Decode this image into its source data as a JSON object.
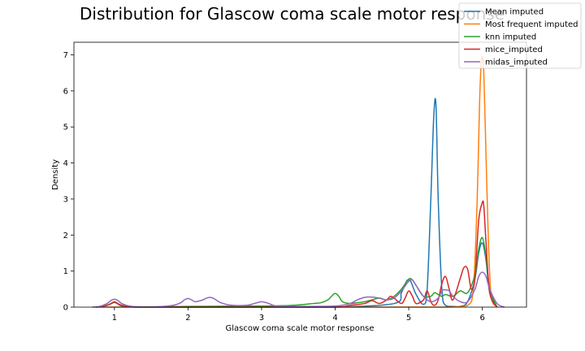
{
  "chart_data": {
    "type": "line",
    "title": "Distribution for Glascow coma scale motor response",
    "xlabel": "Glascow coma scale motor response",
    "ylabel": "Density",
    "xlim": [
      0.45,
      6.6
    ],
    "ylim": [
      0,
      7.35
    ],
    "xticks": [
      1,
      2,
      3,
      4,
      5,
      6
    ],
    "yticks": [
      0,
      1,
      2,
      3,
      4,
      5,
      6,
      7
    ],
    "grid": false,
    "legend_position": "top-right",
    "series": [
      {
        "name": "Mean imputed",
        "color": "#1f77b4",
        "x": [
          0.75,
          0.9,
          0.96,
          1.0,
          1.04,
          1.1,
          1.3,
          2.0,
          3.0,
          4.0,
          4.8,
          4.9,
          4.97,
          5.0,
          5.03,
          5.1,
          5.2,
          5.25,
          5.3,
          5.34,
          5.37,
          5.4,
          5.45,
          5.5,
          5.6,
          5.7,
          5.8,
          5.9,
          5.95,
          6.0,
          6.05,
          6.1,
          6.2
        ],
        "y": [
          0.0,
          0.05,
          0.1,
          0.13,
          0.1,
          0.03,
          0.0,
          0.0,
          0.0,
          0.0,
          0.1,
          0.4,
          0.72,
          0.75,
          0.7,
          0.35,
          0.08,
          0.5,
          3.0,
          5.3,
          5.6,
          3.0,
          0.5,
          0.05,
          0.02,
          0.02,
          0.15,
          0.8,
          1.5,
          1.78,
          1.3,
          0.4,
          0.0
        ]
      },
      {
        "name": "Most frequent imputed",
        "color": "#ff7f0e",
        "x": [
          0.75,
          1.0,
          1.3,
          2.0,
          3.0,
          4.0,
          5.0,
          5.5,
          5.8,
          5.88,
          5.93,
          5.96,
          5.98,
          6.0,
          6.02,
          6.04,
          6.08,
          6.12,
          6.2
        ],
        "y": [
          0.0,
          0.0,
          0.0,
          0.0,
          0.0,
          0.0,
          0.0,
          0.0,
          0.05,
          0.6,
          3.0,
          5.5,
          6.6,
          6.95,
          6.5,
          5.0,
          2.0,
          0.3,
          0.0
        ]
      },
      {
        "name": "knn imputed",
        "color": "#2ca02c",
        "x": [
          0.75,
          0.9,
          0.97,
          1.0,
          1.03,
          1.1,
          1.3,
          2.0,
          3.0,
          3.3,
          3.5,
          3.7,
          3.8,
          3.9,
          3.95,
          4.0,
          4.05,
          4.1,
          4.2,
          4.3,
          4.4,
          4.5,
          4.6,
          4.7,
          4.8,
          4.9,
          5.0,
          5.05,
          5.1,
          5.2,
          5.3,
          5.35,
          5.4,
          5.45,
          5.5,
          5.6,
          5.7,
          5.8,
          5.9,
          5.95,
          6.0,
          6.05,
          6.1,
          6.2
        ],
        "y": [
          0.0,
          0.05,
          0.12,
          0.13,
          0.12,
          0.05,
          0.01,
          0.02,
          0.03,
          0.04,
          0.06,
          0.1,
          0.12,
          0.2,
          0.3,
          0.38,
          0.3,
          0.15,
          0.1,
          0.12,
          0.15,
          0.2,
          0.25,
          0.2,
          0.3,
          0.5,
          0.78,
          0.75,
          0.6,
          0.3,
          0.3,
          0.4,
          0.35,
          0.3,
          0.35,
          0.3,
          0.45,
          0.4,
          0.9,
          1.6,
          1.93,
          1.4,
          0.5,
          0.0
        ]
      },
      {
        "name": "mice_imputed",
        "color": "#d62728",
        "x": [
          0.75,
          0.9,
          0.97,
          1.0,
          1.03,
          1.1,
          1.3,
          2.0,
          3.0,
          4.0,
          4.2,
          4.4,
          4.5,
          4.6,
          4.7,
          4.75,
          4.8,
          4.9,
          4.95,
          5.0,
          5.05,
          5.1,
          5.2,
          5.25,
          5.3,
          5.35,
          5.4,
          5.45,
          5.5,
          5.55,
          5.6,
          5.7,
          5.75,
          5.8,
          5.85,
          5.9,
          5.95,
          6.0,
          6.02,
          6.05,
          6.1,
          6.2
        ],
        "y": [
          0.0,
          0.05,
          0.12,
          0.15,
          0.12,
          0.05,
          0.0,
          0.0,
          0.0,
          0.0,
          0.05,
          0.1,
          0.18,
          0.1,
          0.2,
          0.3,
          0.25,
          0.1,
          0.25,
          0.45,
          0.3,
          0.1,
          0.2,
          0.45,
          0.15,
          0.05,
          0.2,
          0.65,
          0.85,
          0.5,
          0.2,
          0.8,
          1.1,
          1.05,
          0.5,
          0.8,
          2.4,
          2.9,
          2.8,
          1.8,
          0.4,
          0.0
        ]
      },
      {
        "name": "midas_imputed",
        "color": "#9467bd",
        "x": [
          0.7,
          0.8,
          0.9,
          0.95,
          1.0,
          1.05,
          1.1,
          1.2,
          1.4,
          1.6,
          1.8,
          1.9,
          1.95,
          2.0,
          2.05,
          2.1,
          2.2,
          2.25,
          2.3,
          2.35,
          2.45,
          2.6,
          2.8,
          2.9,
          3.0,
          3.1,
          3.2,
          3.5,
          4.0,
          4.2,
          4.3,
          4.4,
          4.5,
          4.6,
          4.7,
          4.8,
          4.9,
          5.0,
          5.05,
          5.1,
          5.2,
          5.3,
          5.4,
          5.45,
          5.5,
          5.55,
          5.6,
          5.7,
          5.8,
          5.9,
          5.95,
          6.0,
          6.05,
          6.1,
          6.2,
          6.3
        ],
        "y": [
          0.0,
          0.02,
          0.1,
          0.18,
          0.22,
          0.18,
          0.1,
          0.03,
          0.0,
          0.01,
          0.05,
          0.12,
          0.2,
          0.24,
          0.2,
          0.15,
          0.2,
          0.25,
          0.27,
          0.24,
          0.12,
          0.05,
          0.05,
          0.1,
          0.15,
          0.1,
          0.03,
          0.02,
          0.03,
          0.1,
          0.2,
          0.27,
          0.28,
          0.25,
          0.2,
          0.25,
          0.45,
          0.72,
          0.75,
          0.6,
          0.3,
          0.15,
          0.25,
          0.45,
          0.48,
          0.45,
          0.3,
          0.15,
          0.15,
          0.5,
          0.85,
          0.97,
          0.85,
          0.5,
          0.1,
          0.0
        ]
      }
    ]
  }
}
